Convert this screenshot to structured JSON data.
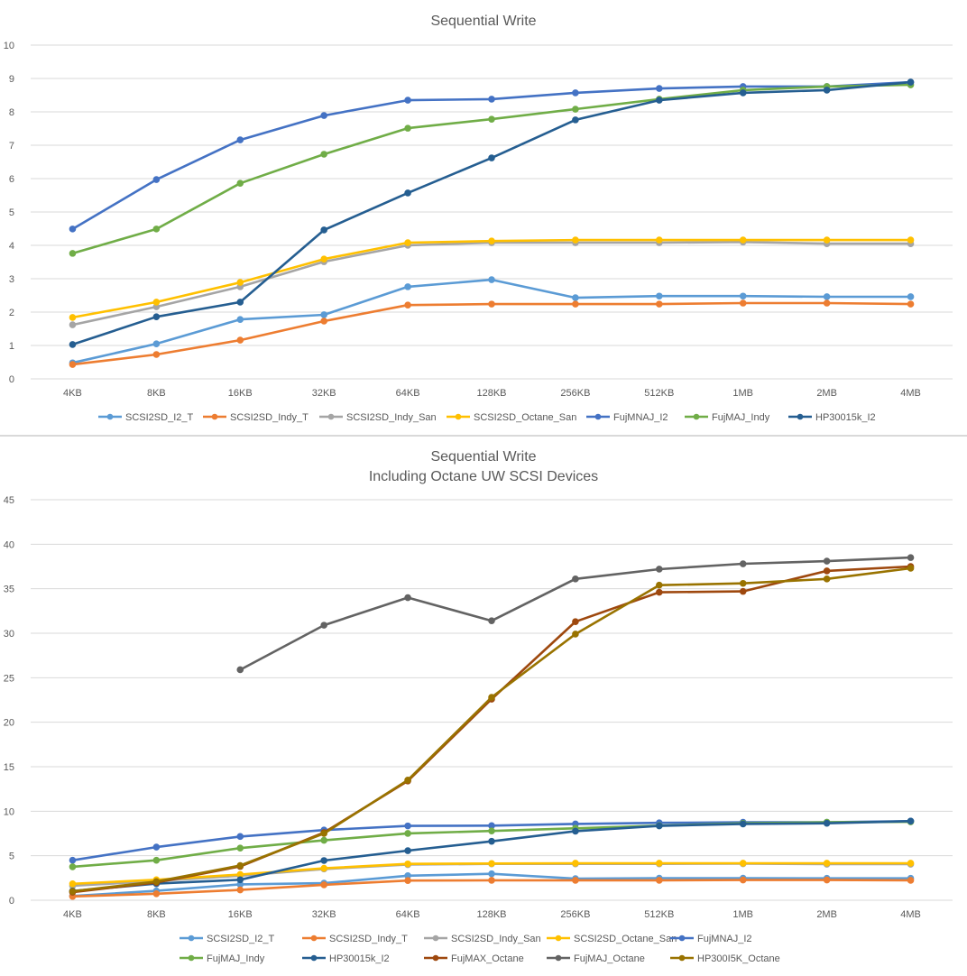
{
  "chart_data": [
    {
      "type": "line",
      "title": "Sequential Write",
      "subtitle": "",
      "xlabel": "",
      "ylabel": "",
      "categories": [
        "4KB",
        "8KB",
        "16KB",
        "32KB",
        "64KB",
        "128KB",
        "256KB",
        "512KB",
        "1MB",
        "2MB",
        "4MB"
      ],
      "ylim": [
        0,
        10
      ],
      "yticks": [
        0,
        1,
        2,
        3,
        4,
        5,
        6,
        7,
        8,
        9,
        10
      ],
      "grid": true,
      "legend_position": "bottom",
      "series": [
        {
          "name": "SCSI2SD_I2_T",
          "color": "#5b9bd5",
          "values": [
            0.48,
            1.05,
            1.78,
            1.92,
            2.76,
            2.97,
            2.43,
            2.48,
            2.48,
            2.46,
            2.46
          ]
        },
        {
          "name": "SCSI2SD_Indy_T",
          "color": "#ed7d31",
          "values": [
            0.43,
            0.73,
            1.16,
            1.73,
            2.21,
            2.24,
            2.24,
            2.24,
            2.27,
            2.27,
            2.24
          ]
        },
        {
          "name": "SCSI2SD_Indy_San",
          "color": "#a5a5a5",
          "values": [
            1.62,
            2.16,
            2.76,
            3.51,
            4.0,
            4.08,
            4.08,
            4.08,
            4.1,
            4.05,
            4.05
          ]
        },
        {
          "name": "SCSI2SD_Octane_San",
          "color": "#ffc000",
          "values": [
            1.84,
            2.3,
            2.89,
            3.59,
            4.08,
            4.13,
            4.16,
            4.16,
            4.16,
            4.16,
            4.16
          ]
        },
        {
          "name": "FujMNAJ_I2",
          "color": "#4472c4",
          "values": [
            4.49,
            5.97,
            7.16,
            7.89,
            8.35,
            8.38,
            8.57,
            8.7,
            8.76,
            8.76,
            8.89
          ]
        },
        {
          "name": "FujMAJ_Indy",
          "color": "#70ad47",
          "values": [
            3.76,
            4.49,
            5.86,
            6.73,
            7.51,
            7.78,
            8.08,
            8.38,
            8.65,
            8.76,
            8.81
          ]
        },
        {
          "name": "HP30015k_I2",
          "color": "#255e91",
          "values": [
            1.03,
            1.86,
            2.3,
            4.46,
            5.57,
            6.62,
            7.76,
            8.35,
            8.57,
            8.65,
            8.89
          ]
        }
      ]
    },
    {
      "type": "line",
      "title": "Sequential Write",
      "subtitle": "Including Octane UW SCSI Devices",
      "xlabel": "",
      "ylabel": "",
      "categories": [
        "4KB",
        "8KB",
        "16KB",
        "32KB",
        "64KB",
        "128KB",
        "256KB",
        "512KB",
        "1MB",
        "2MB",
        "4MB"
      ],
      "ylim": [
        0,
        45
      ],
      "yticks": [
        0,
        5,
        10,
        15,
        20,
        25,
        30,
        35,
        40,
        45
      ],
      "grid": true,
      "legend_position": "bottom",
      "series": [
        {
          "name": "SCSI2SD_I2_T",
          "color": "#5b9bd5",
          "values": [
            0.48,
            1.05,
            1.78,
            1.92,
            2.76,
            2.97,
            2.43,
            2.48,
            2.48,
            2.46,
            2.46
          ]
        },
        {
          "name": "SCSI2SD_Indy_T",
          "color": "#ed7d31",
          "values": [
            0.43,
            0.73,
            1.16,
            1.73,
            2.21,
            2.24,
            2.24,
            2.24,
            2.27,
            2.27,
            2.24
          ]
        },
        {
          "name": "SCSI2SD_Indy_San",
          "color": "#a5a5a5",
          "values": [
            1.62,
            2.16,
            2.76,
            3.51,
            4.0,
            4.08,
            4.08,
            4.08,
            4.1,
            4.05,
            4.05
          ]
        },
        {
          "name": "SCSI2SD_Octane_San",
          "color": "#ffc000",
          "values": [
            1.84,
            2.3,
            2.89,
            3.59,
            4.08,
            4.13,
            4.16,
            4.16,
            4.16,
            4.16,
            4.16
          ]
        },
        {
          "name": "FujMNAJ_I2",
          "color": "#4472c4",
          "values": [
            4.49,
            5.97,
            7.16,
            7.89,
            8.35,
            8.38,
            8.57,
            8.7,
            8.76,
            8.76,
            8.89
          ]
        },
        {
          "name": "FujMAJ_Indy",
          "color": "#70ad47",
          "values": [
            3.76,
            4.49,
            5.86,
            6.73,
            7.51,
            7.78,
            8.08,
            8.38,
            8.65,
            8.76,
            8.81
          ]
        },
        {
          "name": "HP30015k_I2",
          "color": "#255e91",
          "values": [
            1.03,
            1.86,
            2.3,
            4.46,
            5.57,
            6.62,
            7.76,
            8.35,
            8.57,
            8.65,
            8.89
          ]
        },
        {
          "name": "FujMAX_Octane",
          "color": "#9e480e",
          "values": [
            0.9,
            2.0,
            3.8,
            7.6,
            13.4,
            22.6,
            31.3,
            34.6,
            34.7,
            37.0,
            37.5
          ]
        },
        {
          "name": "FujMAJ_Octane",
          "color": "#636363",
          "values": [
            null,
            null,
            25.9,
            30.9,
            34.0,
            31.4,
            36.1,
            37.2,
            37.8,
            38.1,
            38.5
          ]
        },
        {
          "name": "HP300I5K_Octane",
          "color": "#997300",
          "values": [
            1.0,
            2.1,
            3.9,
            7.5,
            13.5,
            22.8,
            29.9,
            35.4,
            35.6,
            36.1,
            37.3
          ]
        }
      ]
    }
  ]
}
